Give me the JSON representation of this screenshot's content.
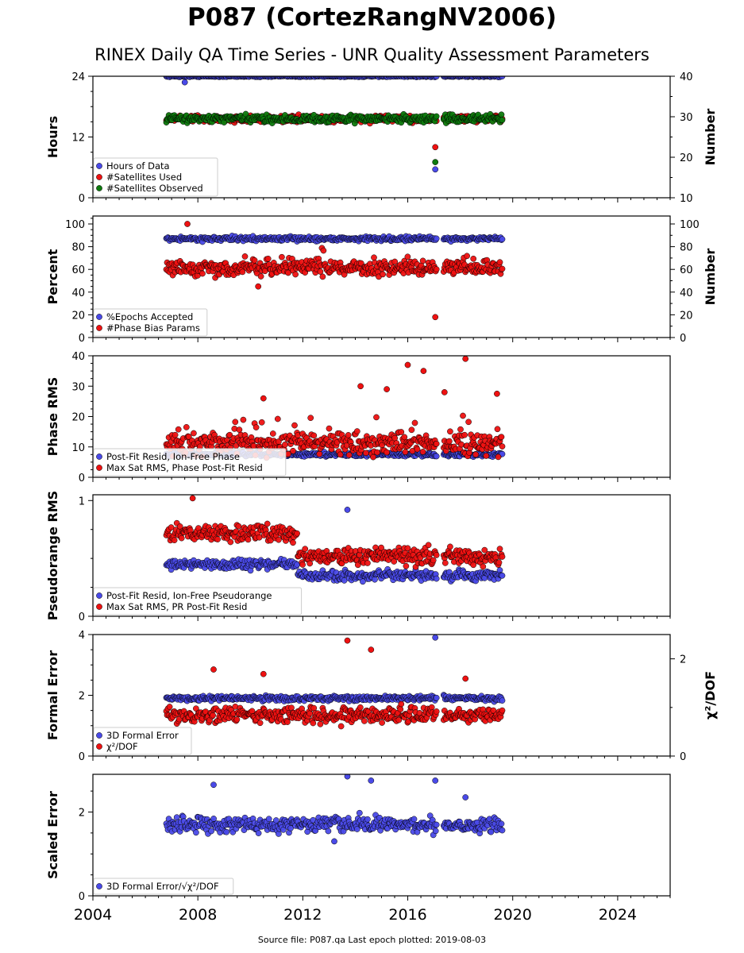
{
  "title": "P087 (CortezRangNV2006)",
  "subtitle": "RINEX Daily QA Time Series - UNR Quality Assessment Parameters",
  "source": "Source file: P087.qa Last epoch plotted: 2019-08-03",
  "colors": {
    "blue": "#4a4ae8",
    "red": "#ee1111",
    "green": "#0d7a0d"
  },
  "chart_data": [
    {
      "type": "scatter",
      "ylabel": "Hours",
      "ylabel_right": "Number",
      "ylim": [
        0,
        24
      ],
      "yticks": [
        0,
        12,
        24
      ],
      "ylim_right": [
        10,
        40
      ],
      "yticks_right": [
        10,
        20,
        30,
        40
      ],
      "legend": "lower-left",
      "series": [
        {
          "name": "Hours of Data",
          "color": "blue",
          "axis": "left",
          "x_range": [
            2006.8,
            2019.6
          ],
          "gap": [
            2017.1,
            2017.35
          ],
          "base": 24,
          "spread": 0.15,
          "outliers": [
            [
              2007.5,
              22.8
            ],
            [
              2017.05,
              5.6
            ]
          ]
        },
        {
          "name": "#Satellites Used",
          "color": "red",
          "axis": "right",
          "x_range": [
            2006.8,
            2019.6
          ],
          "gap": [
            2017.1,
            2017.35
          ],
          "base": 29.5,
          "spread": 0.8,
          "outliers": [
            [
              2017.05,
              22.5
            ]
          ]
        },
        {
          "name": "#Satellites Observed",
          "color": "green",
          "axis": "right",
          "x_range": [
            2006.8,
            2019.6
          ],
          "gap": [
            2017.1,
            2017.35
          ],
          "base": 29.5,
          "spread": 0.9,
          "outliers": [
            [
              2017.05,
              18.8
            ]
          ]
        }
      ]
    },
    {
      "type": "scatter",
      "ylabel": "Percent",
      "ylabel_right": "Number",
      "ylim": [
        0,
        107
      ],
      "yticks": [
        0,
        20,
        40,
        60,
        80,
        100
      ],
      "ylim_right": [
        0,
        107
      ],
      "yticks_right": [
        0,
        20,
        40,
        60,
        80,
        100
      ],
      "legend": "lower-left",
      "series": [
        {
          "name": "%Epochs Accepted",
          "color": "blue",
          "axis": "left",
          "x_range": [
            2006.8,
            2019.6
          ],
          "gap": [
            2017.1,
            2017.35
          ],
          "base": 87,
          "spread": 1.8,
          "outliers": []
        },
        {
          "name": "#Phase Bias Params",
          "color": "red",
          "axis": "left",
          "x_range": [
            2006.8,
            2019.6
          ],
          "gap": [
            2017.1,
            2017.35
          ],
          "base": 61,
          "spread": 6,
          "outliers": [
            [
              2007.6,
              100
            ],
            [
              2010.3,
              45
            ],
            [
              2017.05,
              18
            ]
          ]
        }
      ]
    },
    {
      "type": "scatter",
      "ylabel": "Phase RMS",
      "ylim": [
        0,
        40
      ],
      "yticks": [
        0,
        10,
        20,
        30,
        40
      ],
      "legend": "lower-left",
      "series": [
        {
          "name": "Post-Fit Resid, Ion-Free Phase",
          "color": "blue",
          "axis": "left",
          "x_range": [
            2006.8,
            2019.6
          ],
          "gap": [
            2017.1,
            2017.35
          ],
          "base": 7.5,
          "spread": 0.6,
          "outliers": []
        },
        {
          "name": "Max Sat RMS, Phase Post-Fit Resid",
          "color": "red",
          "axis": "left",
          "x_range": [
            2006.8,
            2019.6
          ],
          "gap": [
            2017.1,
            2017.35
          ],
          "base": 11,
          "spread": 3.5,
          "outliers": [
            [
              2016.0,
              37
            ],
            [
              2018.2,
              39
            ],
            [
              2016.6,
              35
            ],
            [
              2015.2,
              29
            ],
            [
              2014.2,
              30
            ],
            [
              2017.4,
              28
            ],
            [
              2019.4,
              27.5
            ],
            [
              2010.5,
              26
            ]
          ]
        }
      ]
    },
    {
      "type": "scatter",
      "ylabel": "Pseudorange RMS",
      "ylim": [
        0,
        1.05
      ],
      "yticks": [
        0,
        1
      ],
      "legend": "lower-left",
      "series": [
        {
          "name": "Post-Fit Resid, Ion-Free Pseudorange",
          "color": "blue",
          "axis": "left",
          "x_range": [
            2006.8,
            2019.6
          ],
          "gap": [
            2017.1,
            2017.35
          ],
          "base": 0.45,
          "spread": 0.04,
          "step": [
            2011.8,
            -0.1
          ],
          "outliers": [
            [
              2013.7,
              0.92
            ]
          ]
        },
        {
          "name": "Max Sat RMS, PR Post-Fit Resid",
          "color": "red",
          "axis": "left",
          "x_range": [
            2006.8,
            2019.6
          ],
          "gap": [
            2017.1,
            2017.35
          ],
          "base": 0.72,
          "spread": 0.07,
          "step": [
            2011.8,
            -0.2
          ],
          "outliers": [
            [
              2007.8,
              1.02
            ]
          ]
        }
      ]
    },
    {
      "type": "scatter",
      "ylabel": "Formal Error",
      "ylabel_right": "χ²/DOF",
      "ylim": [
        0,
        4
      ],
      "yticks": [
        0,
        2,
        4
      ],
      "ylim_right": [
        0,
        2.5
      ],
      "yticks_right": [
        0,
        2
      ],
      "legend": "lower-left",
      "series": [
        {
          "name": "3D Formal Error",
          "color": "blue",
          "axis": "left",
          "x_range": [
            2006.8,
            2019.6
          ],
          "gap": [
            2017.1,
            2017.35
          ],
          "base": 1.9,
          "spread": 0.08,
          "outliers": [
            [
              2017.05,
              3.9
            ]
          ]
        },
        {
          "name": "χ²/DOF",
          "color": "red",
          "axis": "left",
          "x_range": [
            2006.8,
            2019.6
          ],
          "gap": [
            2017.1,
            2017.35
          ],
          "base": 1.35,
          "spread": 0.25,
          "outliers": [
            [
              2013.7,
              3.8
            ],
            [
              2014.6,
              3.5
            ],
            [
              2008.6,
              2.85
            ],
            [
              2010.5,
              2.7
            ],
            [
              2018.2,
              2.55
            ]
          ]
        }
      ]
    },
    {
      "type": "scatter",
      "ylabel": "Scaled Error",
      "ylim": [
        0,
        2.9
      ],
      "yticks": [
        0,
        2
      ],
      "legend": "lower-left",
      "series": [
        {
          "name": "3D Formal Error/√χ²/DOF",
          "color": "blue",
          "axis": "left",
          "x_range": [
            2006.8,
            2019.6
          ],
          "gap": [
            2017.1,
            2017.35
          ],
          "base": 1.7,
          "spread": 0.18,
          "outliers": [
            [
              2013.7,
              2.85
            ],
            [
              2014.6,
              2.75
            ],
            [
              2017.05,
              2.75
            ],
            [
              2008.6,
              2.65
            ],
            [
              2018.2,
              2.35
            ],
            [
              2013.2,
              1.3
            ]
          ]
        }
      ]
    }
  ],
  "x_axis": {
    "xlim": [
      2004,
      2026
    ],
    "ticks": [
      2004,
      2008,
      2012,
      2016,
      2020,
      2024
    ]
  }
}
